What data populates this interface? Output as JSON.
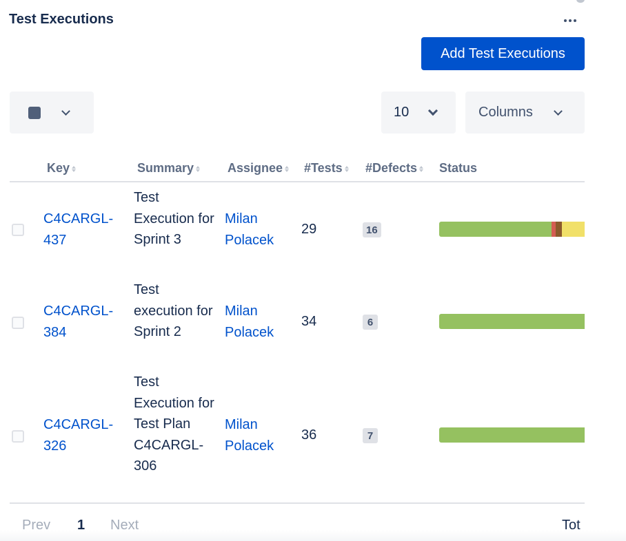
{
  "panel": {
    "title": "Test Executions",
    "add_button_label": "Add Test Executions",
    "more_icon": "more-horizontal-icon"
  },
  "toolbar": {
    "page_size": "10",
    "columns_label": "Columns"
  },
  "table": {
    "headers": {
      "key": "Key",
      "summary": "Summary",
      "assignee": "Assignee",
      "tests": "#Tests",
      "defects": "#Defects",
      "status": "Status"
    },
    "rows": [
      {
        "key": "C4CARGL-437",
        "summary": "Test Execution for Sprint 3",
        "assignee": "Milan Polacek",
        "tests": "29",
        "defects": "16",
        "status_segments": [
          {
            "color": "#95c160",
            "fraction": 0.74
          },
          {
            "color": "#d45d52",
            "fraction": 0.03
          },
          {
            "color": "#8c5a2c",
            "fraction": 0.04
          },
          {
            "color": "#f1e069",
            "fraction": 0.15
          },
          {
            "color": "#a5adba",
            "fraction": 0.04
          }
        ]
      },
      {
        "key": "C4CARGL-384",
        "summary": "Test execution for Sprint 2",
        "assignee": "Milan Polacek",
        "tests": "34",
        "defects": "6",
        "status_segments": [
          {
            "color": "#95c160",
            "fraction": 1.0
          }
        ]
      },
      {
        "key": "C4CARGL-326",
        "summary": "Test Execution for Test Plan C4CARGL-306",
        "assignee": "Milan Polacek",
        "tests": "36",
        "defects": "7",
        "status_segments": [
          {
            "color": "#95c160",
            "fraction": 1.0
          }
        ]
      }
    ]
  },
  "pagination": {
    "prev_label": "Prev",
    "current_page": "1",
    "next_label": "Next",
    "total_label": "Tot"
  },
  "colors": {
    "primary": "#0052cc",
    "pass": "#95c160",
    "fail": "#d45d52",
    "aborted": "#8c5a2c",
    "executing": "#f1e069",
    "todo": "#a5adba"
  }
}
